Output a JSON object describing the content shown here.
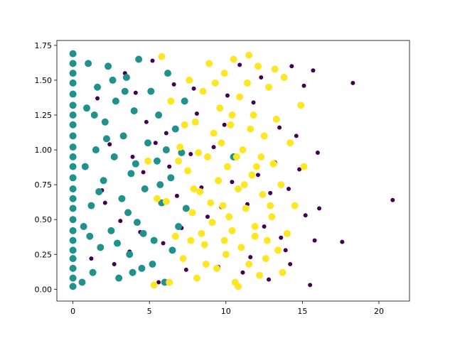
{
  "chart_data": {
    "type": "scatter",
    "title": "",
    "xlabel": "",
    "ylabel": "",
    "xlim": [
      -1.05,
      22.0
    ],
    "ylim": [
      -0.085,
      1.785
    ],
    "xticks": [
      0,
      5,
      10,
      15,
      20
    ],
    "yticks": [
      0.0,
      0.25,
      0.5,
      0.75,
      1.0,
      1.25,
      1.5,
      1.75
    ],
    "xtick_labels": [
      "0",
      "5",
      "10",
      "15",
      "20"
    ],
    "ytick_labels": [
      "0.00",
      "0.25",
      "0.50",
      "0.75",
      "1.00",
      "1.25",
      "1.50",
      "1.75"
    ],
    "grid": false,
    "series": [
      {
        "color": "#440154",
        "marker_size": "small",
        "points": [
          [
            2.1,
            0.62
          ],
          [
            3.4,
            1.55
          ],
          [
            4.8,
            1.2
          ],
          [
            5.6,
            0.05
          ],
          [
            6.3,
            0.88
          ],
          [
            7.9,
            1.44
          ],
          [
            8.6,
            0.31
          ],
          [
            9.2,
            1.02
          ],
          [
            10.4,
            0.77
          ],
          [
            11.1,
            0.12
          ],
          [
            11.8,
            1.34
          ],
          [
            12.5,
            0.45
          ],
          [
            13.2,
            0.91
          ],
          [
            13.9,
            0.28
          ],
          [
            14.6,
            1.1
          ],
          [
            15.2,
            0.53
          ],
          [
            15.8,
            0.35
          ],
          [
            16.1,
            0.58
          ],
          [
            16.0,
            0.98
          ],
          [
            17.6,
            0.34
          ],
          [
            18.3,
            1.48
          ],
          [
            20.9,
            0.64
          ],
          [
            15.5,
            0.03
          ],
          [
            15.1,
            1.46
          ],
          [
            14.3,
            1.6
          ],
          [
            1.6,
            1.37
          ],
          [
            2.7,
            0.18
          ],
          [
            3.9,
            0.95
          ],
          [
            4.4,
            0.41
          ],
          [
            5.2,
            1.64
          ],
          [
            6.8,
            0.67
          ],
          [
            7.4,
            0.14
          ],
          [
            8.1,
            1.26
          ],
          [
            9.7,
            0.59
          ],
          [
            10.9,
            1.61
          ],
          [
            12.1,
            0.82
          ],
          [
            12.8,
            0.07
          ],
          [
            13.5,
            1.16
          ],
          [
            14.1,
            0.72
          ],
          [
            1.2,
            0.22
          ],
          [
            2.4,
            1.04
          ],
          [
            3.1,
            0.49
          ],
          [
            4.1,
            1.41
          ],
          [
            5.9,
            0.33
          ],
          [
            6.1,
            1.12
          ],
          [
            7.1,
            0.44
          ],
          [
            8.4,
            0.73
          ],
          [
            9.5,
            0.16
          ],
          [
            10.1,
            1.39
          ],
          [
            11.4,
            0.61
          ],
          [
            12.3,
            1.52
          ],
          [
            13.6,
            0.37
          ],
          [
            14.8,
            0.86
          ],
          [
            1.9,
            0.71
          ],
          [
            3.7,
            0.27
          ],
          [
            4.6,
            0.84
          ],
          [
            5.4,
            1.05
          ],
          [
            6.6,
            1.47
          ],
          [
            7.7,
            0.97
          ],
          [
            8.8,
            0.52
          ],
          [
            9.9,
            1.18
          ],
          [
            11.6,
            0.23
          ],
          [
            12.9,
            0.69
          ],
          [
            14.2,
            0.18
          ],
          [
            15.7,
            1.57
          ]
        ]
      },
      {
        "color": "#21918c",
        "marker_size": "large",
        "points": [
          [
            0,
            0.02
          ],
          [
            0,
            0.08
          ],
          [
            0,
            0.15
          ],
          [
            0,
            0.22
          ],
          [
            0,
            0.28
          ],
          [
            0,
            0.35
          ],
          [
            0,
            0.42
          ],
          [
            0,
            0.5
          ],
          [
            0,
            0.58
          ],
          [
            0,
            0.65
          ],
          [
            0,
            0.72
          ],
          [
            0,
            0.8
          ],
          [
            0,
            0.88
          ],
          [
            0,
            0.95
          ],
          [
            0,
            1.02
          ],
          [
            0,
            1.1
          ],
          [
            0,
            1.18
          ],
          [
            0,
            1.25
          ],
          [
            0,
            1.32
          ],
          [
            0,
            1.4
          ],
          [
            0,
            1.48
          ],
          [
            0,
            1.55
          ],
          [
            0,
            1.62
          ],
          [
            0,
            1.69
          ],
          [
            0.6,
            0.05
          ],
          [
            0.7,
            0.45
          ],
          [
            0.8,
            0.88
          ],
          [
            0.9,
            1.3
          ],
          [
            1.0,
            1.62
          ],
          [
            1.2,
            0.6
          ],
          [
            1.3,
            0.12
          ],
          [
            1.5,
            1.0
          ],
          [
            1.6,
            1.45
          ],
          [
            1.8,
            0.3
          ],
          [
            2.0,
            0.78
          ],
          [
            2.1,
            1.2
          ],
          [
            2.3,
            1.6
          ],
          [
            2.5,
            0.42
          ],
          [
            2.7,
            0.95
          ],
          [
            2.8,
            1.35
          ],
          [
            3.0,
            0.08
          ],
          [
            3.2,
            0.65
          ],
          [
            3.3,
            1.1
          ],
          [
            3.5,
            1.52
          ],
          [
            3.7,
            0.25
          ],
          [
            3.8,
            0.83
          ],
          [
            4.0,
            1.28
          ],
          [
            4.2,
            0.48
          ],
          [
            4.3,
            1.65
          ],
          [
            4.5,
            0.15
          ],
          [
            4.7,
            0.72
          ],
          [
            4.9,
            1.05
          ],
          [
            5.1,
            1.42
          ],
          [
            5.3,
            0.35
          ],
          [
            5.5,
            0.92
          ],
          [
            5.6,
            1.25
          ],
          [
            5.8,
            0.62
          ],
          [
            6.0,
            0.05
          ],
          [
            6.2,
            1.55
          ],
          [
            6.4,
            0.8
          ],
          [
            6.5,
            0.28
          ],
          [
            6.7,
            1.15
          ],
          [
            6.9,
            0.45
          ],
          [
            7.1,
            0.98
          ],
          [
            7.3,
            1.35
          ],
          [
            7.4,
            0.58
          ],
          [
            2.9,
            0.33
          ],
          [
            3.6,
            0.55
          ],
          [
            1.1,
            0.38
          ],
          [
            1.7,
            0.7
          ],
          [
            2.2,
            1.08
          ],
          [
            4.1,
            0.9
          ],
          [
            4.6,
            0.4
          ],
          [
            3.4,
            1.42
          ],
          [
            5.2,
            0.18
          ],
          [
            1.4,
            1.25
          ],
          [
            2.6,
            1.5
          ],
          [
            3.9,
            0.12
          ],
          [
            5.7,
            0.75
          ],
          [
            6.1,
            1.0
          ],
          [
            10.5,
            0.95
          ]
        ]
      },
      {
        "color": "#fde725",
        "marker_size": "large",
        "points": [
          [
            4.9,
            0.92
          ],
          [
            5.3,
            0.03
          ],
          [
            5.8,
            1.67
          ],
          [
            6.1,
            0.63
          ],
          [
            6.4,
            1.35
          ],
          [
            6.7,
            0.38
          ],
          [
            7.0,
            1.02
          ],
          [
            7.2,
            0.22
          ],
          [
            7.5,
            0.85
          ],
          [
            7.6,
            1.5
          ],
          [
            7.8,
            0.55
          ],
          [
            8.0,
            1.2
          ],
          [
            8.1,
            0.08
          ],
          [
            8.3,
            0.7
          ],
          [
            8.5,
            1.42
          ],
          [
            8.6,
            0.32
          ],
          [
            8.8,
            0.95
          ],
          [
            8.9,
            1.62
          ],
          [
            9.1,
            0.48
          ],
          [
            9.2,
            1.12
          ],
          [
            9.4,
            0.15
          ],
          [
            9.5,
            0.78
          ],
          [
            9.6,
            1.3
          ],
          [
            9.8,
            0.6
          ],
          [
            9.9,
            1.55
          ],
          [
            10.0,
            0.25
          ],
          [
            10.1,
            0.88
          ],
          [
            10.3,
            1.18
          ],
          [
            10.4,
            0.42
          ],
          [
            10.5,
            1.65
          ],
          [
            10.6,
            0.05
          ],
          [
            10.8,
            0.72
          ],
          [
            10.9,
            1.38
          ],
          [
            11.0,
            0.3
          ],
          [
            11.1,
            1.0
          ],
          [
            11.3,
            0.58
          ],
          [
            11.4,
            1.48
          ],
          [
            11.5,
            0.18
          ],
          [
            11.7,
            0.82
          ],
          [
            11.8,
            1.25
          ],
          [
            11.9,
            0.45
          ],
          [
            12.1,
            1.6
          ],
          [
            12.2,
            0.1
          ],
          [
            12.4,
            0.68
          ],
          [
            12.5,
            1.1
          ],
          [
            12.7,
            0.35
          ],
          [
            12.8,
            1.45
          ],
          [
            13.0,
            0.52
          ],
          [
            13.1,
            0.9
          ],
          [
            13.3,
            1.22
          ],
          [
            13.4,
            0.28
          ],
          [
            13.6,
            0.75
          ],
          [
            13.8,
            1.52
          ],
          [
            14.0,
            0.4
          ],
          [
            14.2,
            1.05
          ],
          [
            14.5,
            0.6
          ],
          [
            14.9,
            1.32
          ],
          [
            15.1,
            0.88
          ],
          [
            8.2,
            0.98
          ],
          [
            9.0,
            0.62
          ],
          [
            9.7,
            1.05
          ],
          [
            10.2,
            0.52
          ],
          [
            10.7,
            0.95
          ],
          [
            11.2,
            0.75
          ],
          [
            11.6,
            1.15
          ],
          [
            12.0,
            0.88
          ],
          [
            12.6,
            0.22
          ],
          [
            12.9,
            0.6
          ],
          [
            13.2,
            1.58
          ],
          [
            8.4,
            0.4
          ],
          [
            9.3,
            1.48
          ],
          [
            10.4,
            1.25
          ],
          [
            11.5,
            1.68
          ],
          [
            7.9,
            0.72
          ],
          [
            8.7,
            0.18
          ],
          [
            9.9,
            0.35
          ],
          [
            10.8,
            0.02
          ],
          [
            11.9,
            0.38
          ],
          [
            12.3,
            0.95
          ],
          [
            13.7,
            0.12
          ],
          [
            7.3,
            1.18
          ],
          [
            6.9,
            0.92
          ],
          [
            6.3,
            0.05
          ],
          [
            7.7,
            0.35
          ],
          [
            5.5,
            0.65
          ]
        ]
      }
    ]
  }
}
